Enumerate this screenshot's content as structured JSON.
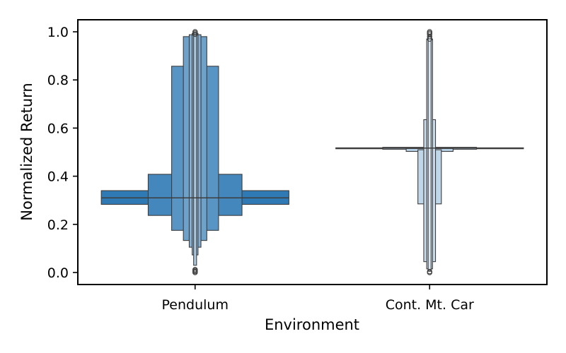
{
  "chart_data": {
    "type": "boxen",
    "xlabel": "Environment",
    "ylabel": "Normalized Return",
    "ylim": [
      -0.05,
      1.05
    ],
    "yticks": [
      0.0,
      0.2,
      0.4,
      0.6,
      0.8,
      1.0
    ],
    "ytick_labels": [
      "0.0",
      "0.2",
      "0.4",
      "0.6",
      "0.8",
      "1.0"
    ],
    "grid": false,
    "categories": [
      "Pendulum",
      "Cont. Mt. Car"
    ],
    "series": [
      {
        "category": "Pendulum",
        "color": "#2f7ab5",
        "median": 0.31,
        "boxes": [
          {
            "lo": 0.283,
            "hi": 0.34,
            "width": 0.8
          },
          {
            "lo": 0.237,
            "hi": 0.408,
            "width": 0.4
          },
          {
            "lo": 0.175,
            "hi": 0.857,
            "width": 0.2
          },
          {
            "lo": 0.133,
            "hi": 0.98,
            "width": 0.1
          },
          {
            "lo": 0.105,
            "hi": 0.988,
            "width": 0.05
          },
          {
            "lo": 0.073,
            "hi": 0.993,
            "width": 0.025
          },
          {
            "lo": 0.03,
            "hi": 0.997,
            "width": 0.0125
          }
        ],
        "outliers": [
          0.0,
          0.004,
          0.008,
          0.012,
          0.99,
          0.995,
          1.0
        ]
      },
      {
        "category": "Cont. Mt. Car",
        "color": "#a5c5e0",
        "median": 0.517,
        "boxes": [
          {
            "lo": 0.514,
            "hi": 0.518,
            "width": 0.8
          },
          {
            "lo": 0.512,
            "hi": 0.52,
            "width": 0.4
          },
          {
            "lo": 0.503,
            "hi": 0.515,
            "width": 0.2
          },
          {
            "lo": 0.285,
            "hi": 0.51,
            "width": 0.1
          },
          {
            "lo": 0.045,
            "hi": 0.635,
            "width": 0.05
          },
          {
            "lo": 0.015,
            "hi": 0.97,
            "width": 0.025
          },
          {
            "lo": 0.005,
            "hi": 0.985,
            "width": 0.0125
          }
        ],
        "outliers": [
          0.0,
          0.004,
          0.97,
          0.98,
          0.99,
          0.995,
          1.0
        ]
      }
    ]
  }
}
